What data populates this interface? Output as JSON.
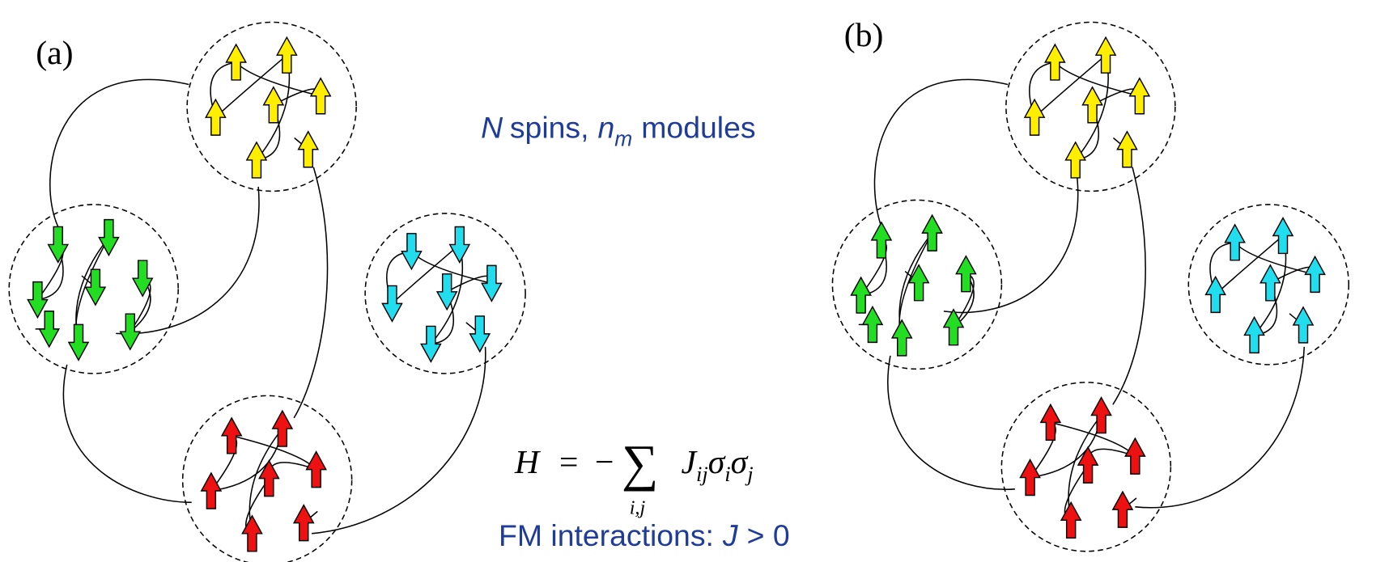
{
  "panels": [
    {
      "label": "(a)"
    },
    {
      "label": "(b)"
    }
  ],
  "annotation": {
    "n_symbol": "N",
    "spins": "spins,",
    "nm_symbol": "n",
    "nm_sub": "m",
    "modules": "modules"
  },
  "hamiltonian": {
    "lhs": "H",
    "equals": "=",
    "minus": "−",
    "sum": "∑",
    "sum_index": "i,j",
    "coupling": "J",
    "coupling_sub": "ij",
    "sigma1": "σ",
    "sigma1_sub": "i",
    "sigma2": "σ",
    "sigma2_sub": "j"
  },
  "interactions": {
    "text": "FM interactions:",
    "symbol": "J",
    "relation": "> 0"
  }
}
